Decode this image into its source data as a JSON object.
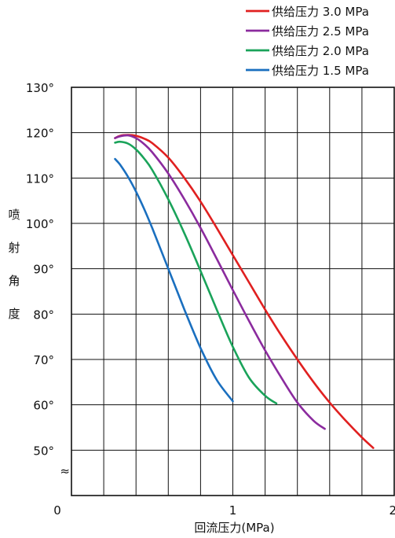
{
  "chart_data": {
    "type": "line",
    "title": "",
    "xlabel": "回流压力(MPa)",
    "ylabel": "喷射角度",
    "ylabel_chars": [
      "喷",
      "射",
      "角",
      "度"
    ],
    "xlim": [
      0,
      2
    ],
    "ylim": [
      40,
      130
    ],
    "x_ticks": [
      {
        "value": 0,
        "label": "0"
      },
      {
        "value": 1,
        "label": "1"
      },
      {
        "value": 2,
        "label": "2"
      }
    ],
    "y_ticks": [
      {
        "value": 50,
        "label": "50°"
      },
      {
        "value": 60,
        "label": "60°"
      },
      {
        "value": 70,
        "label": "70°"
      },
      {
        "value": 80,
        "label": "80°"
      },
      {
        "value": 90,
        "label": "90°"
      },
      {
        "value": 100,
        "label": "100°"
      },
      {
        "value": 110,
        "label": "110°"
      },
      {
        "value": 120,
        "label": "120°"
      },
      {
        "value": 130,
        "label": "130°"
      }
    ],
    "axis_break_symbol": "≈",
    "grid": true,
    "legend_position": "top-right",
    "series": [
      {
        "name": "供给压力 3.0 MPa",
        "color": "#e02020",
        "x": [
          0.27,
          0.3,
          0.35,
          0.4,
          0.45,
          0.5,
          0.6,
          0.7,
          0.8,
          0.9,
          1.0,
          1.1,
          1.2,
          1.3,
          1.4,
          1.5,
          1.6,
          1.7,
          1.8,
          1.87
        ],
        "y": [
          118.8,
          119.3,
          119.5,
          119.3,
          118.7,
          117.7,
          114.5,
          110.0,
          104.8,
          99.0,
          93.0,
          87.0,
          81.0,
          75.3,
          70.0,
          65.0,
          60.5,
          56.5,
          52.8,
          50.5
        ]
      },
      {
        "name": "供给压力 2.5 MPa",
        "color": "#8b2b9e",
        "x": [
          0.27,
          0.3,
          0.35,
          0.4,
          0.45,
          0.5,
          0.6,
          0.7,
          0.8,
          0.9,
          1.0,
          1.1,
          1.2,
          1.3,
          1.4,
          1.5,
          1.57
        ],
        "y": [
          118.8,
          119.2,
          119.4,
          118.8,
          117.5,
          115.7,
          111.0,
          105.3,
          99.0,
          92.2,
          85.3,
          78.5,
          72.0,
          66.0,
          60.5,
          56.5,
          54.7
        ]
      },
      {
        "name": "供给压力 2.0 MPa",
        "color": "#1aa35a",
        "x": [
          0.27,
          0.3,
          0.35,
          0.4,
          0.45,
          0.5,
          0.6,
          0.7,
          0.8,
          0.9,
          1.0,
          1.1,
          1.2,
          1.27
        ],
        "y": [
          117.8,
          118.0,
          117.6,
          116.3,
          114.3,
          111.8,
          105.3,
          97.8,
          89.5,
          81.0,
          72.8,
          66.0,
          62.0,
          60.3
        ]
      },
      {
        "name": "供给压力 1.5 MPa",
        "color": "#1a6fbf",
        "x": [
          0.27,
          0.3,
          0.35,
          0.4,
          0.45,
          0.5,
          0.6,
          0.7,
          0.8,
          0.9,
          1.0
        ],
        "y": [
          114.2,
          113.0,
          110.3,
          107.0,
          103.2,
          99.0,
          90.0,
          81.0,
          72.5,
          65.5,
          60.8
        ]
      }
    ]
  }
}
